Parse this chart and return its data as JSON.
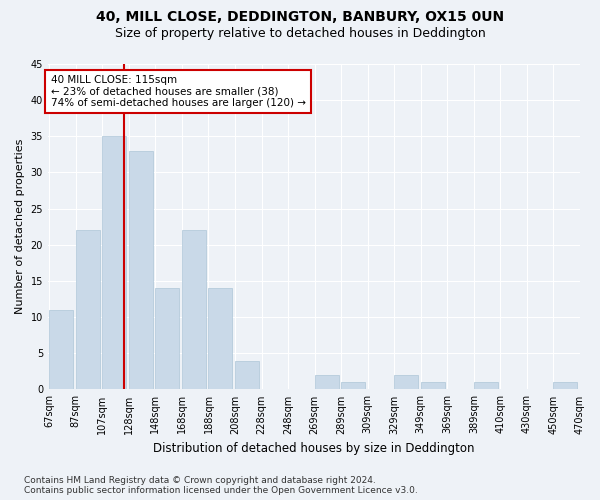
{
  "title1": "40, MILL CLOSE, DEDDINGTON, BANBURY, OX15 0UN",
  "title2": "Size of property relative to detached houses in Deddington",
  "xlabel": "Distribution of detached houses by size in Deddington",
  "ylabel": "Number of detached properties",
  "footnote": "Contains HM Land Registry data © Crown copyright and database right 2024.\nContains public sector information licensed under the Open Government Licence v3.0.",
  "annotation_line1": "40 MILL CLOSE: 115sqm",
  "annotation_line2": "← 23% of detached houses are smaller (38)",
  "annotation_line3": "74% of semi-detached houses are larger (120) →",
  "property_size_bin_index": 2,
  "bar_heights": [
    11,
    22,
    35,
    33,
    14,
    22,
    14,
    4,
    0,
    0,
    2,
    1,
    0,
    2,
    1,
    0,
    1,
    0,
    0,
    1
  ],
  "tick_labels": [
    "67sqm",
    "87sqm",
    "107sqm",
    "128sqm",
    "148sqm",
    "168sqm",
    "188sqm",
    "208sqm",
    "228sqm",
    "248sqm",
    "269sqm",
    "289sqm",
    "309sqm",
    "329sqm",
    "349sqm",
    "369sqm",
    "389sqm",
    "410sqm",
    "430sqm",
    "450sqm",
    "470sqm"
  ],
  "ylim": [
    0,
    45
  ],
  "yticks": [
    0,
    5,
    10,
    15,
    20,
    25,
    30,
    35,
    40,
    45
  ],
  "bar_color": "#c9d9e8",
  "bar_edge_color": "#aec6d8",
  "red_line_color": "#cc0000",
  "annotation_box_color": "#cc0000",
  "background_color": "#eef2f7",
  "grid_color": "#ffffff",
  "title1_fontsize": 10,
  "title2_fontsize": 9,
  "xlabel_fontsize": 8.5,
  "ylabel_fontsize": 8,
  "tick_fontsize": 7,
  "annotation_fontsize": 7.5,
  "footnote_fontsize": 6.5
}
